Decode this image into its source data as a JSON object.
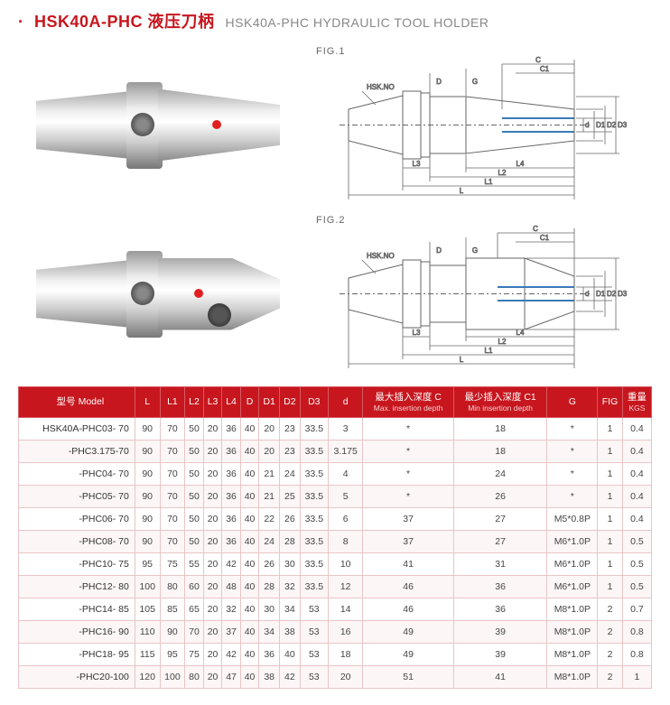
{
  "header": {
    "bullet": "·",
    "title_main": "HSK40A-PHC 液压刀柄",
    "title_sub": "HSK40A-PHC HYDRAULIC TOOL HOLDER"
  },
  "figures": {
    "fig1_label": "FIG.1",
    "fig2_label": "FIG.2",
    "dim_labels": {
      "hsk_no": "HSK.NO",
      "D": "D",
      "G": "G",
      "C": "C",
      "C1": "C1",
      "d": "d",
      "D1": "D1",
      "D2": "D2",
      "D3": "D3",
      "L": "L",
      "L1": "L1",
      "L2": "L2",
      "L3": "L3",
      "L4": "L4"
    }
  },
  "table": {
    "columns": [
      {
        "key": "model",
        "label": "型号 Model",
        "sub": ""
      },
      {
        "key": "L",
        "label": "L",
        "sub": ""
      },
      {
        "key": "L1",
        "label": "L1",
        "sub": ""
      },
      {
        "key": "L2",
        "label": "L2",
        "sub": ""
      },
      {
        "key": "L3",
        "label": "L3",
        "sub": ""
      },
      {
        "key": "L4",
        "label": "L4",
        "sub": ""
      },
      {
        "key": "D",
        "label": "D",
        "sub": ""
      },
      {
        "key": "D1",
        "label": "D1",
        "sub": ""
      },
      {
        "key": "D2",
        "label": "D2",
        "sub": ""
      },
      {
        "key": "D3",
        "label": "D3",
        "sub": ""
      },
      {
        "key": "d",
        "label": "d",
        "sub": ""
      },
      {
        "key": "C",
        "label": "最大插入深度 C",
        "sub": "Max. insertion depth"
      },
      {
        "key": "C1",
        "label": "最少插入深度 C1",
        "sub": "Min insertion depth"
      },
      {
        "key": "G",
        "label": "G",
        "sub": ""
      },
      {
        "key": "FIG",
        "label": "FIG",
        "sub": ""
      },
      {
        "key": "KGS",
        "label": "重量",
        "sub": "KGS"
      }
    ],
    "rows": [
      {
        "model": "HSK40A-PHC03- 70",
        "L": "90",
        "L1": "70",
        "L2": "50",
        "L3": "20",
        "L4": "36",
        "D": "40",
        "D1": "20",
        "D2": "23",
        "D3": "33.5",
        "d": "3",
        "C": "*",
        "C1": "18",
        "G": "*",
        "FIG": "1",
        "KGS": "0.4"
      },
      {
        "model": "-PHC3.175-70",
        "L": "90",
        "L1": "70",
        "L2": "50",
        "L3": "20",
        "L4": "36",
        "D": "40",
        "D1": "20",
        "D2": "23",
        "D3": "33.5",
        "d": "3.175",
        "C": "*",
        "C1": "18",
        "G": "*",
        "FIG": "1",
        "KGS": "0.4"
      },
      {
        "model": "-PHC04- 70",
        "L": "90",
        "L1": "70",
        "L2": "50",
        "L3": "20",
        "L4": "36",
        "D": "40",
        "D1": "21",
        "D2": "24",
        "D3": "33.5",
        "d": "4",
        "C": "*",
        "C1": "24",
        "G": "*",
        "FIG": "1",
        "KGS": "0.4"
      },
      {
        "model": "-PHC05- 70",
        "L": "90",
        "L1": "70",
        "L2": "50",
        "L3": "20",
        "L4": "36",
        "D": "40",
        "D1": "21",
        "D2": "25",
        "D3": "33.5",
        "d": "5",
        "C": "*",
        "C1": "26",
        "G": "*",
        "FIG": "1",
        "KGS": "0.4"
      },
      {
        "model": "-PHC06- 70",
        "L": "90",
        "L1": "70",
        "L2": "50",
        "L3": "20",
        "L4": "36",
        "D": "40",
        "D1": "22",
        "D2": "26",
        "D3": "33.5",
        "d": "6",
        "C": "37",
        "C1": "27",
        "G": "M5*0.8P",
        "FIG": "1",
        "KGS": "0.4"
      },
      {
        "model": "-PHC08- 70",
        "L": "90",
        "L1": "70",
        "L2": "50",
        "L3": "20",
        "L4": "36",
        "D": "40",
        "D1": "24",
        "D2": "28",
        "D3": "33.5",
        "d": "8",
        "C": "37",
        "C1": "27",
        "G": "M6*1.0P",
        "FIG": "1",
        "KGS": "0.5"
      },
      {
        "model": "-PHC10- 75",
        "L": "95",
        "L1": "75",
        "L2": "55",
        "L3": "20",
        "L4": "42",
        "D": "40",
        "D1": "26",
        "D2": "30",
        "D3": "33.5",
        "d": "10",
        "C": "41",
        "C1": "31",
        "G": "M6*1.0P",
        "FIG": "1",
        "KGS": "0.5"
      },
      {
        "model": "-PHC12- 80",
        "L": "100",
        "L1": "80",
        "L2": "60",
        "L3": "20",
        "L4": "48",
        "D": "40",
        "D1": "28",
        "D2": "32",
        "D3": "33.5",
        "d": "12",
        "C": "46",
        "C1": "36",
        "G": "M6*1.0P",
        "FIG": "1",
        "KGS": "0.5"
      },
      {
        "model": "-PHC14- 85",
        "L": "105",
        "L1": "85",
        "L2": "65",
        "L3": "20",
        "L4": "32",
        "D": "40",
        "D1": "30",
        "D2": "34",
        "D3": "53",
        "d": "14",
        "C": "46",
        "C1": "36",
        "G": "M8*1.0P",
        "FIG": "2",
        "KGS": "0.7"
      },
      {
        "model": "-PHC16- 90",
        "L": "110",
        "L1": "90",
        "L2": "70",
        "L3": "20",
        "L4": "37",
        "D": "40",
        "D1": "34",
        "D2": "38",
        "D3": "53",
        "d": "16",
        "C": "49",
        "C1": "39",
        "G": "M8*1.0P",
        "FIG": "2",
        "KGS": "0.8"
      },
      {
        "model": "-PHC18- 95",
        "L": "115",
        "L1": "95",
        "L2": "75",
        "L3": "20",
        "L4": "42",
        "D": "40",
        "D1": "36",
        "D2": "40",
        "D3": "53",
        "d": "18",
        "C": "49",
        "C1": "39",
        "G": "M8*1.0P",
        "FIG": "2",
        "KGS": "0.8"
      },
      {
        "model": "-PHC20-100",
        "L": "120",
        "L1": "100",
        "L2": "80",
        "L3": "20",
        "L4": "47",
        "D": "40",
        "D1": "38",
        "D2": "42",
        "D3": "53",
        "d": "20",
        "C": "51",
        "C1": "41",
        "G": "M8*1.0P",
        "FIG": "2",
        "KGS": "1"
      }
    ]
  },
  "colors": {
    "brand_red": "#c7161e",
    "header_border": "#d85a60",
    "row_border": "#e8c5c7",
    "row_alt_bg": "#fdf6f6",
    "text": "#444444",
    "diagram_line": "#666666",
    "diagram_blue": "#3a7ab8"
  }
}
